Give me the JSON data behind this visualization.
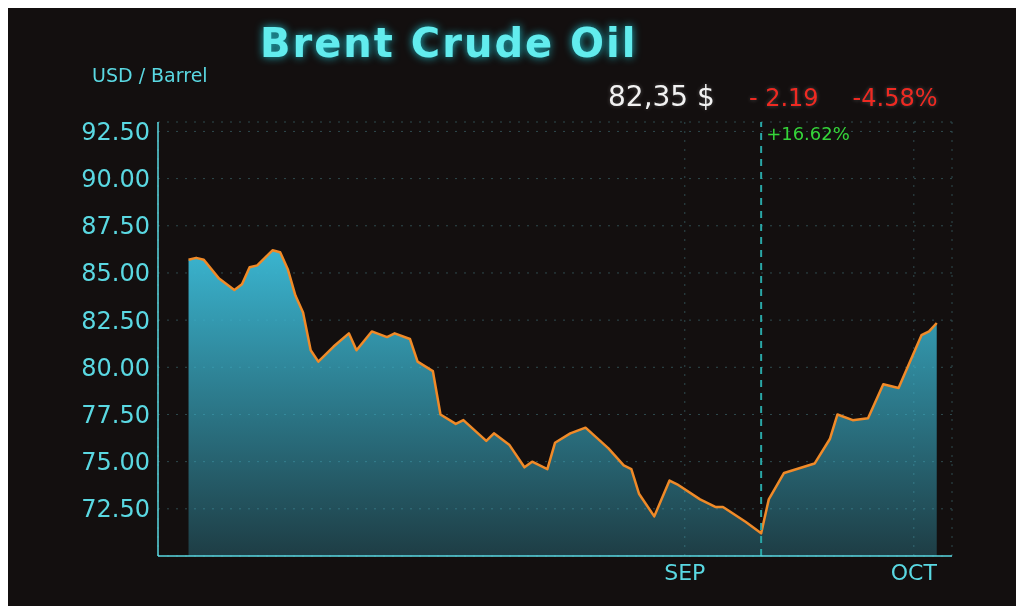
{
  "chart_data": {
    "type": "area",
    "title": "Brent Crude Oil",
    "ylabel": "USD / Barrel",
    "annotations": [
      "82,35 $",
      "- 2.19",
      "-4.58%"
    ],
    "x": [
      "--06-28",
      "--06-29",
      "--06-30",
      "--07-02",
      "--07-03",
      "--07-04",
      "--07-05",
      "--07-06",
      "--07-07",
      "--07-09",
      "--07-10",
      "--07-11",
      "--07-12",
      "--07-13",
      "--07-14",
      "--07-15",
      "--07-17",
      "--07-19",
      "--07-20",
      "--07-22",
      "--07-24",
      "--07-25",
      "--07-27",
      "--07-28",
      "--07-30",
      "--07-31",
      "--08-02",
      "--08-03",
      "--08-06",
      "--08-07",
      "--08-09",
      "--08-11",
      "--08-12",
      "--08-14",
      "--08-15",
      "--08-17",
      "--08-19",
      "--08-22",
      "--08-24",
      "--08-25",
      "--08-26",
      "--08-28",
      "--08-30",
      "--08-31",
      "--09-03",
      "--09-05",
      "--09-06",
      "--09-09",
      "--09-11",
      "--09-12",
      "--09-14",
      "--09-18",
      "--09-20",
      "--09-21",
      "--09-23",
      "--09-25",
      "--09-27",
      "--09-29",
      "--10-02",
      "--10-03",
      "--10-04"
    ],
    "values": [
      85.7,
      85.8,
      85.7,
      84.7,
      84.4,
      84.1,
      84.4,
      85.3,
      85.4,
      86.2,
      86.1,
      85.2,
      83.8,
      82.9,
      80.9,
      80.3,
      81.1,
      81.8,
      80.9,
      81.9,
      81.6,
      81.8,
      81.5,
      80.3,
      79.8,
      77.5,
      77.0,
      77.2,
      76.1,
      76.5,
      75.9,
      74.7,
      75.0,
      74.6,
      76.0,
      76.5,
      76.8,
      75.7,
      74.8,
      74.6,
      73.3,
      72.1,
      74.0,
      73.8,
      73.0,
      72.6,
      72.6,
      71.8,
      71.2,
      73.0,
      74.4,
      74.9,
      76.2,
      77.5,
      77.2,
      77.3,
      79.1,
      78.9,
      81.7,
      81.9,
      82.35
    ],
    "color": "#3ab4cf",
    "xlim": [
      "--06-24",
      "--10-06"
    ],
    "xticks": [
      {
        "value": "--09-01",
        "label": "SEP"
      },
      {
        "value": "--10-01",
        "label": "OCT"
      }
    ],
    "ylim": [
      70,
      93
    ],
    "yticks": [
      {
        "value": 72.5,
        "label": "72.50"
      },
      {
        "value": 75,
        "label": "75.00"
      },
      {
        "value": 77.5,
        "label": "77.50"
      },
      {
        "value": 80,
        "label": "80.00"
      },
      {
        "value": 82.5,
        "label": "82.50"
      },
      {
        "value": 85,
        "label": "85.00"
      },
      {
        "value": 87.5,
        "label": "87.50"
      },
      {
        "value": 90,
        "label": "90.00"
      },
      {
        "value": 92.5,
        "label": "92.50"
      }
    ],
    "grid": true,
    "ref_lines": [
      {
        "axis": "x",
        "value": "--09-11",
        "label": "+16.62%",
        "color": "#2aa7a7",
        "line_style": "dashed"
      }
    ]
  }
}
